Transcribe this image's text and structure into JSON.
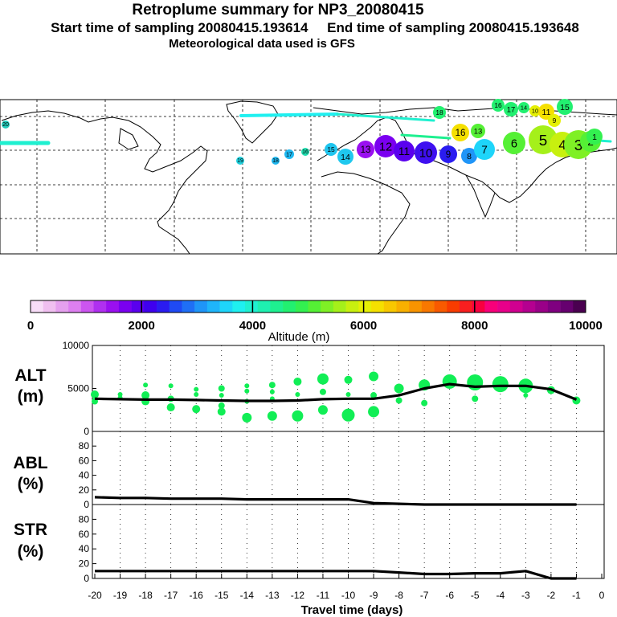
{
  "header": {
    "title": "Retroplume summary for NP3_20080415",
    "sampling": "Start time of sampling 20080415.193614     End time of sampling 20080415.193648",
    "met": "Meteorological data used is GFS"
  },
  "colors": {
    "line": "#000000",
    "point": "#11ee55",
    "scale": [
      "#f8ddf8",
      "#f0bff0",
      "#e5a0ee",
      "#dd7ff0",
      "#cc55f0",
      "#b030f0",
      "#9a10f0",
      "#7a00f0",
      "#5a00ee",
      "#3f00ee",
      "#2a1cf0",
      "#1f4af4",
      "#1f6ff6",
      "#1f95f8",
      "#1fb5fa",
      "#1ed5fa",
      "#1ff0f0",
      "#1ff0d0",
      "#1ef0b0",
      "#1ef090",
      "#22f070",
      "#33f050",
      "#55f035",
      "#7ff025",
      "#a5f01a",
      "#c8f00f",
      "#e5f005",
      "#f5e000",
      "#f8c800",
      "#f8b000",
      "#f89400",
      "#f87800",
      "#f85a00",
      "#f83c00",
      "#f81f1f",
      "#f8003f",
      "#f8007a",
      "#e8008a",
      "#d00090",
      "#b50090",
      "#9a0088",
      "#7f0080",
      "#66006f",
      "#4a0050"
    ]
  },
  "map": {
    "points": [
      {
        "label": "20",
        "color": "#22ccbb"
      },
      {
        "label": "19",
        "color": "#1fd0dd"
      },
      {
        "label": "18",
        "color": "#1fb8f0"
      },
      {
        "label": "17",
        "color": "#1fb8f0"
      },
      {
        "label": "16",
        "color": "#22ddb0"
      },
      {
        "label": "15",
        "color": "#1fc5ee"
      },
      {
        "label": "14",
        "color": "#1fc8ee"
      },
      {
        "label": "13",
        "color": "#9a10f0"
      },
      {
        "label": "12",
        "color": "#7a00f0"
      },
      {
        "label": "11",
        "color": "#5a00ee"
      },
      {
        "label": "10",
        "color": "#3f10f0"
      },
      {
        "label": "9",
        "color": "#2a1cf0"
      },
      {
        "label": "8",
        "color": "#1f95f8"
      },
      {
        "label": "7",
        "color": "#1ed5fa"
      },
      {
        "label": "6",
        "color": "#55f035"
      },
      {
        "label": "5",
        "color": "#a5f01a"
      },
      {
        "label": "4",
        "color": "#c8f00f"
      },
      {
        "label": "3",
        "color": "#7ff025"
      },
      {
        "label": "2",
        "color": "#55f035"
      },
      {
        "label": "1",
        "color": "#33f050"
      },
      {
        "label": "16",
        "color": "#22f070"
      },
      {
        "label": "17",
        "color": "#22f070"
      },
      {
        "label": "14",
        "color": "#22f070"
      },
      {
        "label": "10",
        "color": "#e5f005"
      },
      {
        "label": "11",
        "color": "#f5e000"
      },
      {
        "label": "15",
        "color": "#22f070"
      },
      {
        "label": "18",
        "color": "#22f070"
      },
      {
        "label": "16",
        "color": "#f5e000"
      },
      {
        "label": "13",
        "color": "#55f035"
      },
      {
        "label": "9",
        "color": "#e5f005"
      }
    ]
  },
  "colorbar": {
    "ticks": [
      "0",
      "2000",
      "4000",
      "6000",
      "8000",
      "10000"
    ],
    "label": "Altitude (m)"
  },
  "chart_data": [
    {
      "type": "line",
      "name": "ALT",
      "ylabel": "ALT\n(m)",
      "ylabel_lines": [
        "ALT",
        "(m)"
      ],
      "ylim": [
        0,
        10000
      ],
      "yticks": [
        "10000",
        "5000",
        "0"
      ],
      "line": {
        "x": [
          -20,
          -19,
          -18,
          -17,
          -16,
          -15,
          -14,
          -13,
          -12,
          -11,
          -10,
          -9,
          -8,
          -7,
          -6,
          -5,
          -4,
          -3,
          -2,
          -1
        ],
        "y": [
          3800,
          3750,
          3700,
          3700,
          3650,
          3600,
          3550,
          3550,
          3600,
          3750,
          3800,
          3800,
          4200,
          5000,
          5500,
          5200,
          5300,
          5300,
          4900,
          3700
        ]
      },
      "points": {
        "x": [
          -20,
          -20,
          -19,
          -19,
          -18,
          -18,
          -18,
          -17,
          -17,
          -17,
          -16,
          -16,
          -16,
          -15,
          -15,
          -15,
          -15,
          -14,
          -14,
          -14,
          -14,
          -13,
          -13,
          -13,
          -13,
          -12,
          -12,
          -12,
          -11,
          -11,
          -11,
          -10,
          -10,
          -10,
          -9,
          -9,
          -9,
          -8,
          -8,
          -7,
          -7,
          -6,
          -5,
          -5,
          -4,
          -3,
          -3,
          -2,
          -1
        ],
        "y": [
          4300,
          3500,
          4300,
          3900,
          5400,
          4200,
          3500,
          5300,
          3800,
          2800,
          4900,
          4300,
          2600,
          5000,
          4200,
          3000,
          2300,
          5300,
          4700,
          3500,
          1600,
          5400,
          4600,
          3800,
          1800,
          5800,
          4300,
          1800,
          6100,
          4600,
          2500,
          6000,
          4300,
          1900,
          6400,
          4200,
          2300,
          5000,
          3600,
          5400,
          3300,
          5800,
          5700,
          3800,
          5500,
          5300,
          4200,
          4800,
          3600
        ],
        "size": [
          5,
          4,
          3,
          3,
          3,
          5,
          5,
          3,
          4,
          5,
          3,
          3,
          5,
          4,
          3,
          4,
          5,
          3,
          3,
          3,
          6,
          4,
          3,
          3,
          6,
          5,
          3,
          7,
          7,
          4,
          6,
          5,
          3,
          8,
          6,
          4,
          7,
          6,
          4,
          7,
          4,
          9,
          10,
          4,
          10,
          9,
          3,
          5,
          5
        ]
      }
    },
    {
      "type": "line",
      "name": "ABL",
      "ylabel_lines": [
        "ABL",
        "(%)"
      ],
      "ylim": [
        0,
        100
      ],
      "yticks": [
        "80",
        "60",
        "40",
        "20",
        "0"
      ],
      "x": [
        -20,
        -19,
        -18,
        -17,
        -16,
        -15,
        -14,
        -13,
        -12,
        -11,
        -10,
        -9,
        -8,
        -7,
        -6,
        -5,
        -4,
        -3,
        -2,
        -1
      ],
      "y": [
        10,
        9,
        9,
        8,
        8,
        8,
        7,
        7,
        7,
        7,
        7,
        2,
        1,
        0,
        0,
        0,
        0,
        0,
        0,
        0
      ]
    },
    {
      "type": "line",
      "name": "STR",
      "ylabel_lines": [
        "STR",
        "(%)"
      ],
      "ylim": [
        0,
        100
      ],
      "yticks": [
        "80",
        "60",
        "40",
        "20",
        "0"
      ],
      "x": [
        -20,
        -19,
        -18,
        -17,
        -16,
        -15,
        -14,
        -13,
        -12,
        -11,
        -10,
        -9,
        -8,
        -7,
        -6,
        -5,
        -4,
        -3,
        -2,
        -1
      ],
      "y": [
        10,
        10,
        10,
        10,
        10,
        10,
        10,
        10,
        10,
        10,
        10,
        10,
        8,
        6,
        6,
        7,
        7,
        10,
        0,
        0
      ]
    },
    {
      "type": "axis",
      "xlabel": "Travel time (days)",
      "xticks": [
        "-20",
        "-19",
        "-18",
        "-17",
        "-16",
        "-15",
        "-14",
        "-13",
        "-12",
        "-11",
        "-10",
        "-9",
        "-8",
        "-7",
        "-6",
        "-5",
        "-4",
        "-3",
        "-2",
        "-1",
        "0"
      ]
    }
  ]
}
